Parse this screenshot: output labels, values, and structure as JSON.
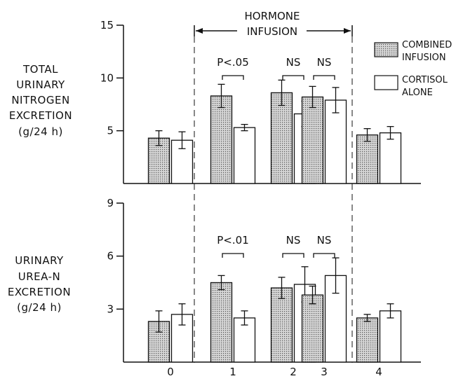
{
  "chart_data": [
    {
      "type": "bar",
      "ylabel_lines": [
        "TOTAL",
        "URINARY",
        "NITROGEN",
        "EXCRETION",
        "(g/24 h)"
      ],
      "categories": [
        "0",
        "1",
        "2",
        "3",
        "4"
      ],
      "ylim": [
        0,
        15
      ],
      "yticks": [
        5,
        10,
        15
      ],
      "series": [
        {
          "name": "COMBINED INFUSION",
          "values": [
            4.3,
            8.3,
            8.6,
            8.2,
            4.6
          ],
          "errors": [
            0.7,
            1.1,
            1.2,
            1.0,
            0.6
          ]
        },
        {
          "name": "CORTISOL ALONE",
          "values": [
            4.1,
            5.3,
            6.6,
            7.9,
            4.8
          ],
          "errors": [
            0.8,
            0.3,
            1.2,
            1.2,
            0.6
          ]
        }
      ],
      "significance": [
        "P<.05",
        "NS",
        "NS"
      ]
    },
    {
      "type": "bar",
      "ylabel_lines": [
        "URINARY",
        "UREA-N",
        "EXCRETION",
        "(g/24 h)"
      ],
      "categories": [
        "0",
        "1",
        "2",
        "3",
        "4"
      ],
      "ylim": [
        0,
        9
      ],
      "yticks": [
        3,
        6,
        9
      ],
      "series": [
        {
          "name": "COMBINED INFUSION",
          "values": [
            2.3,
            4.5,
            4.2,
            3.8,
            2.5
          ],
          "errors": [
            0.6,
            0.4,
            0.6,
            0.5,
            0.2
          ]
        },
        {
          "name": "CORTISOL ALONE",
          "values": [
            2.7,
            2.5,
            4.4,
            4.9,
            2.9
          ],
          "errors": [
            0.6,
            0.4,
            1.0,
            1.0,
            0.4
          ]
        }
      ],
      "significance": [
        "P<.01",
        "NS",
        "NS"
      ]
    }
  ],
  "infusion_label": [
    "HORMONE",
    "INFUSION"
  ],
  "legend": [
    {
      "lines": [
        "COMBINED",
        "INFUSION"
      ],
      "fill": "dotted"
    },
    {
      "lines": [
        "CORTISOL",
        "ALONE"
      ],
      "fill": "white"
    }
  ]
}
